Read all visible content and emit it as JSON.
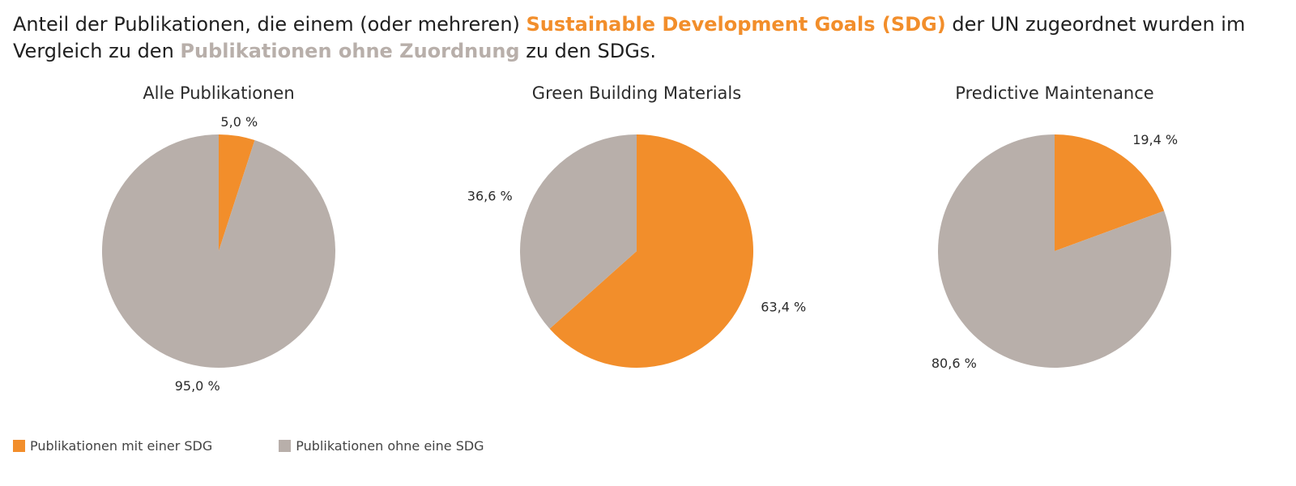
{
  "headline": {
    "part1": "Anteil der Publikationen, die einem (oder mehreren) ",
    "highlight1": "Sustainable Development Goals (SDG)",
    "part2": " der UN zugeordnet wurden im Vergleich zu den ",
    "highlight2": "Publikationen ohne Zuordnung",
    "part3": " zu den SDGs."
  },
  "colors": {
    "with_sdg": "#f28e2b",
    "without_sdg": "#b8afaa"
  },
  "legend": [
    {
      "label": "Publikationen mit einer SDG",
      "color": "#f28e2b"
    },
    {
      "label": "Publikationen ohne eine SDG",
      "color": "#b8afaa"
    }
  ],
  "chart_data": [
    {
      "type": "pie",
      "title": "Alle Publikationen",
      "slices": [
        {
          "name": "Publikationen mit einer SDG",
          "value": 5.0,
          "label": "5,0 %"
        },
        {
          "name": "Publikationen ohne eine SDG",
          "value": 95.0,
          "label": "95,0 %"
        }
      ]
    },
    {
      "type": "pie",
      "title": "Green Building Materials",
      "slices": [
        {
          "name": "Publikationen mit einer SDG",
          "value": 63.4,
          "label": "63,4 %"
        },
        {
          "name": "Publikationen ohne eine SDG",
          "value": 36.6,
          "label": "36,6 %"
        }
      ]
    },
    {
      "type": "pie",
      "title": "Predictive Maintenance",
      "slices": [
        {
          "name": "Publikationen mit einer SDG",
          "value": 19.4,
          "label": "19,4 %"
        },
        {
          "name": "Publikationen ohne eine SDG",
          "value": 80.6,
          "label": "80,6 %"
        }
      ]
    }
  ]
}
